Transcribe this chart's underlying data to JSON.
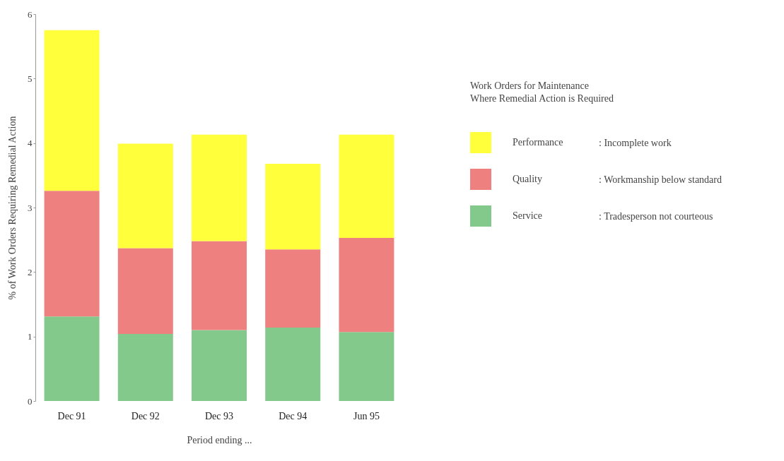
{
  "chart_data": {
    "type": "bar",
    "stacked": true,
    "xlabel": "Period ending ...",
    "ylabel": "% of Work Orders Requiring Remedial Action",
    "legend_title": "Work Orders for Maintenance\nWhere Remedial Action is Required",
    "categories": [
      "Dec 91",
      "Dec 92",
      "Dec 93",
      "Dec 94",
      "Jun 95"
    ],
    "series": [
      {
        "name": "Service",
        "color": "#84c98c",
        "values": [
          1.31,
          1.04,
          1.1,
          1.14,
          1.07
        ]
      },
      {
        "name": "Quality",
        "color": "#ee8080",
        "values": [
          1.95,
          1.33,
          1.38,
          1.21,
          1.46
        ]
      },
      {
        "name": "Performance",
        "color": "#ffff3c",
        "values": [
          2.49,
          1.62,
          1.65,
          1.33,
          1.6
        ]
      }
    ],
    "annotations": [
      ": Tradesperson not courteous",
      ": Workmanship below standard",
      ": Incomplete work"
    ],
    "ylim": [
      0,
      6
    ],
    "yticks": [
      0,
      1,
      2,
      3,
      4,
      5,
      6
    ],
    "grid": false,
    "legend": "right"
  }
}
